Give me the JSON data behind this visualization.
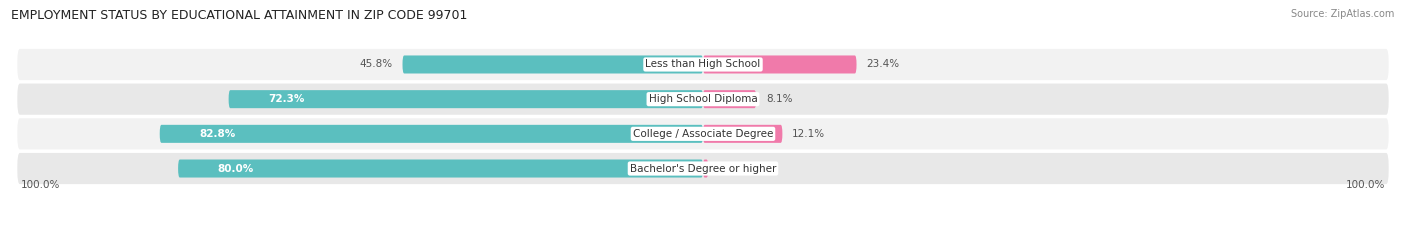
{
  "title": "EMPLOYMENT STATUS BY EDUCATIONAL ATTAINMENT IN ZIP CODE 99701",
  "source": "Source: ZipAtlas.com",
  "categories": [
    "Less than High School",
    "High School Diploma",
    "College / Associate Degree",
    "Bachelor's Degree or higher"
  ],
  "labor_force": [
    45.8,
    72.3,
    82.8,
    80.0
  ],
  "unemployed": [
    23.4,
    8.1,
    12.1,
    0.8
  ],
  "labor_force_color": "#5BBFBF",
  "unemployed_color": "#F07AAA",
  "row_bg_light": "#F2F2F2",
  "row_bg_dark": "#E8E8E8",
  "label_text_color": "#555555",
  "white_label_color": "#FFFFFF",
  "axis_label_left": "100.0%",
  "axis_label_right": "100.0%",
  "max_val": 100.0,
  "title_fontsize": 9,
  "source_fontsize": 7,
  "bar_label_fontsize": 7.5,
  "category_fontsize": 7.5,
  "axis_fontsize": 7.5,
  "legend_fontsize": 7.5
}
